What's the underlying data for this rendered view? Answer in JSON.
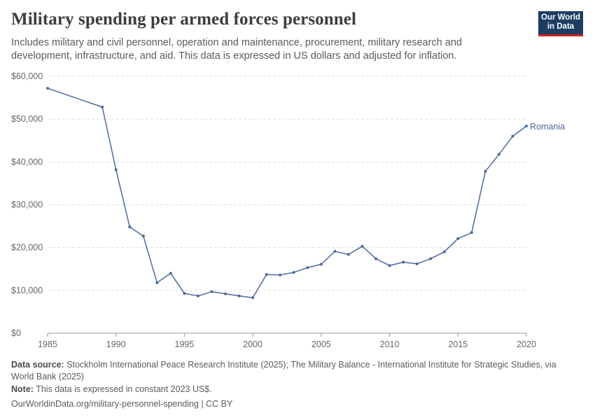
{
  "header": {
    "title": "Military spending per armed forces personnel",
    "subtitle": "Includes military and civil personnel, operation and maintenance, procurement, military research and development, infrastructure, and aid. This data is expressed in US dollars and adjusted for inflation."
  },
  "logo": {
    "line1": "Our World",
    "line2": "in Data"
  },
  "footer": {
    "source_label": "Data source:",
    "source_text": "Stockholm International Peace Research Institute (2025); The Military Balance - International Institute for Strategic Studies, via World Bank (2025)",
    "note_label": "Note:",
    "note_text": "This data is expressed in constant 2023 US$.",
    "url_text": "OurWorldinData.org/military-personnel-spending | CC BY"
  },
  "colors": {
    "series": "#4c6a9c",
    "grid": "#dddddd",
    "axis": "#999999",
    "logo_bg": "#1d3d63",
    "logo_accent": "#ce261e"
  },
  "chart_data": {
    "type": "line",
    "xlim": [
      1985,
      2020
    ],
    "ylim": [
      0,
      60000
    ],
    "x_ticks": [
      1985,
      1990,
      1995,
      2000,
      2005,
      2010,
      2015,
      2020
    ],
    "y_ticks": [
      0,
      10000,
      20000,
      30000,
      40000,
      50000,
      60000
    ],
    "y_tick_labels": [
      "$0",
      "$10,000",
      "$20,000",
      "$30,000",
      "$40,000",
      "$50,000",
      "$60,000"
    ],
    "grid": true,
    "series": [
      {
        "name": "Romania",
        "x": [
          1985,
          1989,
          1990,
          1991,
          1992,
          1993,
          1994,
          1995,
          1996,
          1997,
          1998,
          1999,
          2000,
          2001,
          2002,
          2003,
          2004,
          2005,
          2006,
          2007,
          2008,
          2009,
          2010,
          2011,
          2012,
          2013,
          2014,
          2015,
          2016,
          2017,
          2018,
          2019,
          2020
        ],
        "y": [
          57200,
          52800,
          38200,
          24800,
          22700,
          11800,
          14000,
          9300,
          8700,
          9700,
          9200,
          8700,
          8300,
          13700,
          13600,
          14200,
          15300,
          16100,
          19100,
          18400,
          20300,
          17400,
          15800,
          16600,
          16200,
          17400,
          19000,
          22100,
          23500,
          37800,
          41800,
          46000,
          48400
        ]
      }
    ]
  }
}
